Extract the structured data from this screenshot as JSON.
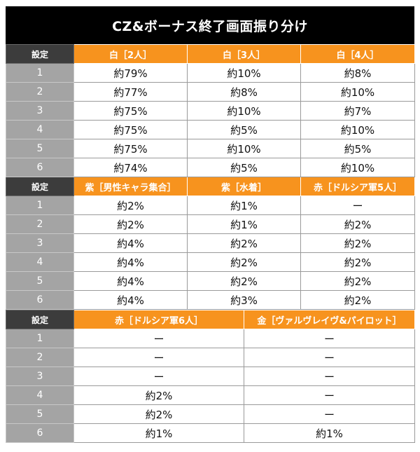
{
  "title": "CZ&ボーナス終了画面振り分け",
  "setting_label": "設定",
  "section1": {
    "headers": [
      "白［2人］",
      "白［3人］",
      "白［4人］"
    ],
    "rows": [
      {
        "setting": "1",
        "values": [
          "約79%",
          "約10%",
          "約8%"
        ]
      },
      {
        "setting": "2",
        "values": [
          "約77%",
          "約8%",
          "約10%"
        ]
      },
      {
        "setting": "3",
        "values": [
          "約75%",
          "約10%",
          "約7%"
        ]
      },
      {
        "setting": "4",
        "values": [
          "約75%",
          "約5%",
          "約10%"
        ]
      },
      {
        "setting": "5",
        "values": [
          "約75%",
          "約10%",
          "約5%"
        ]
      },
      {
        "setting": "6",
        "values": [
          "約74%",
          "約5%",
          "約10%"
        ]
      }
    ]
  },
  "section2": {
    "headers": [
      "紫［男性キャラ集合］",
      "紫［水着］",
      "赤［ドルシア軍5人］"
    ],
    "rows": [
      {
        "setting": "1",
        "values": [
          "約2%",
          "約1%",
          "ー"
        ]
      },
      {
        "setting": "2",
        "values": [
          "約2%",
          "約1%",
          "約2%"
        ]
      },
      {
        "setting": "3",
        "values": [
          "約4%",
          "約2%",
          "約2%"
        ]
      },
      {
        "setting": "4",
        "values": [
          "約4%",
          "約2%",
          "約2%"
        ]
      },
      {
        "setting": "5",
        "values": [
          "約4%",
          "約2%",
          "約2%"
        ]
      },
      {
        "setting": "6",
        "values": [
          "約4%",
          "約3%",
          "約2%"
        ]
      }
    ]
  },
  "section3": {
    "headers": [
      "赤［ドルシア軍6人］",
      "金［ヴァルヴレイヴ&パイロット］"
    ],
    "rows": [
      {
        "setting": "1",
        "values": [
          "ー",
          "ー"
        ]
      },
      {
        "setting": "2",
        "values": [
          "ー",
          "ー"
        ]
      },
      {
        "setting": "3",
        "values": [
          "ー",
          "ー"
        ]
      },
      {
        "setting": "4",
        "values": [
          "約2%",
          "ー"
        ]
      },
      {
        "setting": "5",
        "values": [
          "約2%",
          "ー"
        ]
      },
      {
        "setting": "6",
        "values": [
          "約1%",
          "約1%"
        ]
      }
    ]
  },
  "colors": {
    "title_bg": "#000000",
    "header_orange": "#f7931e",
    "setting_header_bg": "#3c3c3c",
    "setting_cell_bg": "#a4a4a4"
  }
}
